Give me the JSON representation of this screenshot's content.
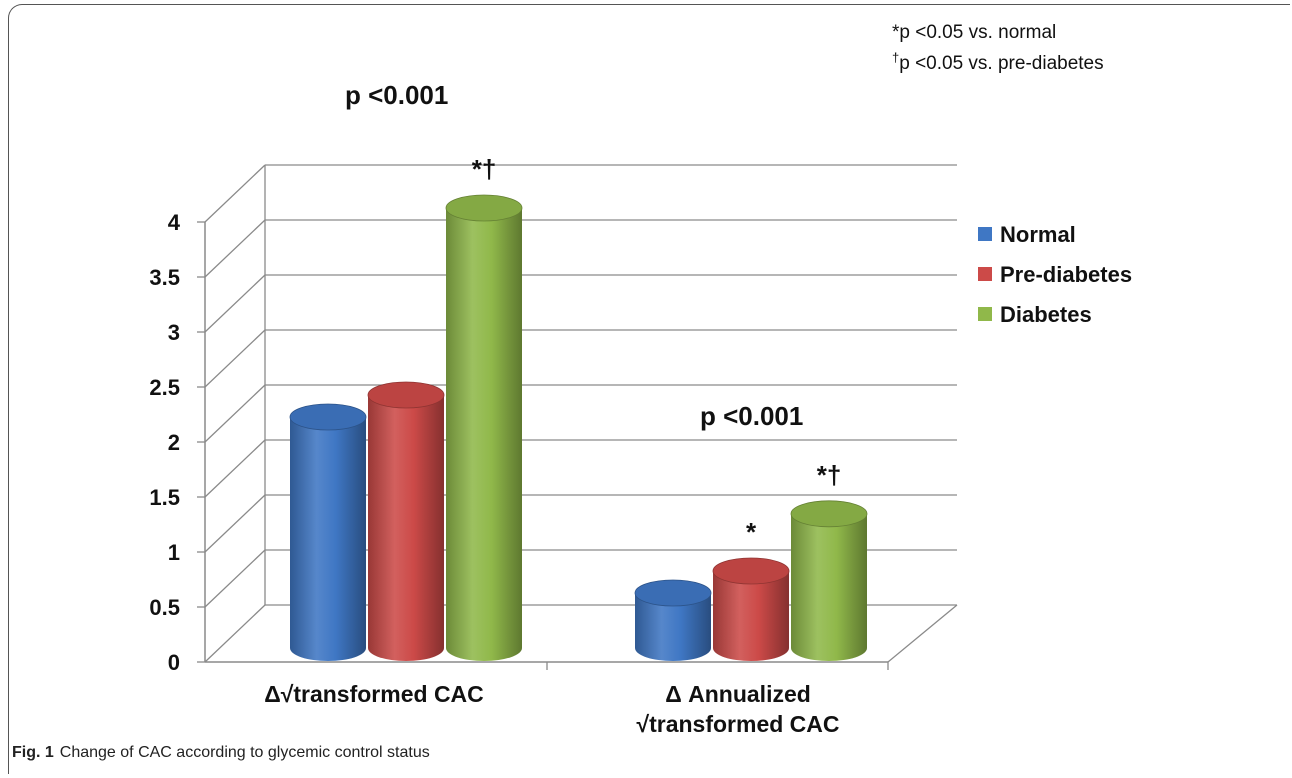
{
  "footnotes": {
    "star": "*p <0.05 vs. normal",
    "dagger_mark": "†",
    "dagger_text": "p <0.05 vs. pre-diabetes"
  },
  "caption": {
    "label": "Fig. 1",
    "text": "Change of CAC according to glycemic control status"
  },
  "chart_data": {
    "type": "bar",
    "title": "",
    "xlabel": "",
    "ylabel": "",
    "ylim": [
      0,
      4
    ],
    "yticks": [
      "0",
      "0.5",
      "1",
      "1.5",
      "2",
      "2.5",
      "3",
      "3.5",
      "4"
    ],
    "categories": [
      [
        "Δ√transformed CAC"
      ],
      [
        "Δ Annualized",
        "√transformed CAC"
      ]
    ],
    "series": [
      {
        "name": "Normal",
        "values": [
          2.1,
          0.5
        ],
        "color": "#3f77c4"
      },
      {
        "name": "Pre-diabetes",
        "values": [
          2.3,
          0.7
        ],
        "color": "#cc4a48"
      },
      {
        "name": "Diabetes",
        "values": [
          4.0,
          1.22
        ],
        "color": "#90b84a"
      }
    ],
    "group_pvalues": [
      "p <0.001",
      "p <0.001"
    ],
    "bar_annotations": [
      [
        "",
        "",
        "*†"
      ],
      [
        "",
        "*",
        "*†"
      ]
    ],
    "legend": "right",
    "grid": true
  }
}
